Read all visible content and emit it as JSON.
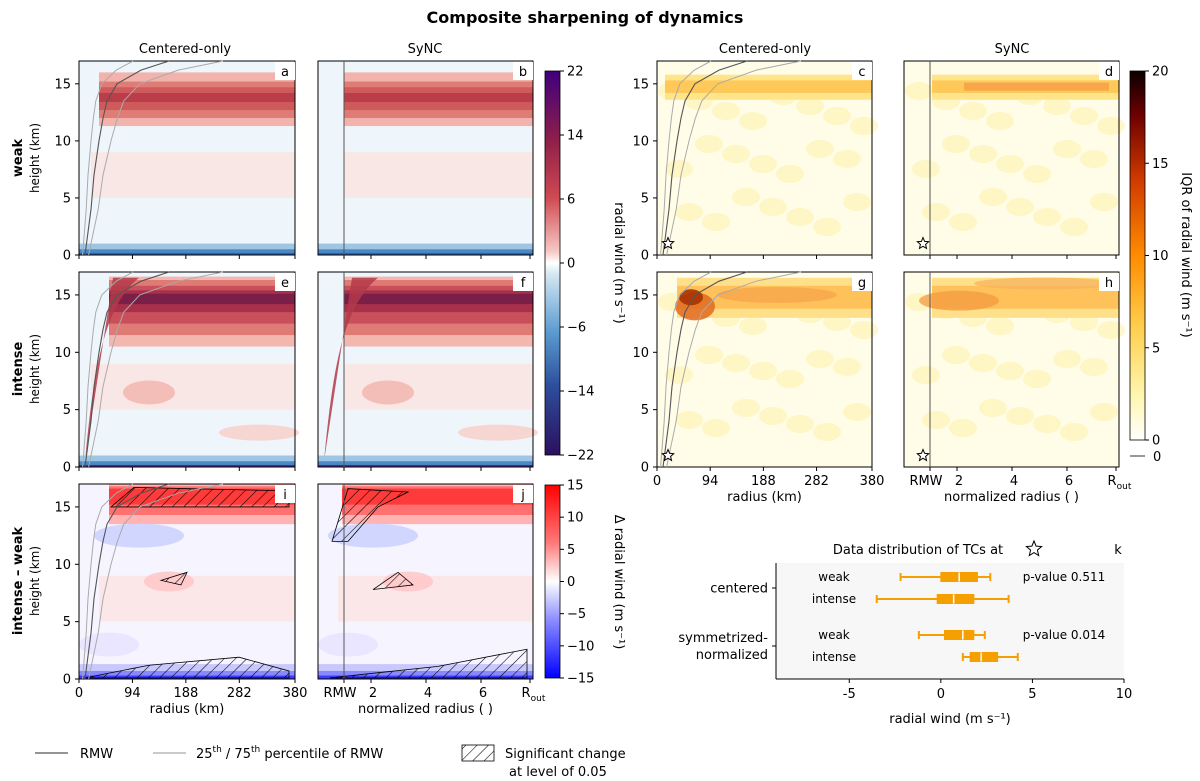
{
  "title": "Composite sharpening of dynamics",
  "col_titles": [
    "Centered-only",
    "SyNC",
    "Centered-only",
    "SyNC"
  ],
  "row_labels": [
    {
      "bold": "weak",
      "sub": "height (km)"
    },
    {
      "bold": "intense",
      "sub": "height (km)"
    },
    {
      "bold": "intense – weak",
      "sub": "height (km)"
    }
  ],
  "colorbars": {
    "radial": {
      "label": "radial wind (m s⁻¹)",
      "ticks": [
        "22",
        "14",
        "6",
        "0",
        "−6",
        "−14",
        "−22"
      ]
    },
    "delta": {
      "label": "Δ radial wind (m s⁻¹)",
      "ticks": [
        "15",
        "10",
        "5",
        "0",
        "−5",
        "−10",
        "−15"
      ]
    },
    "iqr": {
      "label": "IQR of radial wind (m s⁻¹)",
      "ticks": [
        "20",
        "15",
        "10",
        "5",
        "0"
      ],
      "line_tick": "0"
    }
  },
  "axes": {
    "height_ticks": [
      "0",
      "5",
      "10",
      "15"
    ],
    "radius_ticks": [
      "0",
      "94",
      "188",
      "282",
      "380"
    ],
    "radius_label": "radius (km)",
    "norm_ticks": [
      "RMW",
      "2",
      "4",
      "6",
      "R"
    ],
    "norm_sub": "out",
    "norm_label": "normalized radius ( )"
  },
  "panel_letters": [
    "a",
    "b",
    "c",
    "d",
    "e",
    "f",
    "g",
    "h",
    "i",
    "j",
    "k"
  ],
  "legend": {
    "rmw": "RMW",
    "pct_main": "25",
    "pct_sup1": "th",
    "pct_mid": " / 75",
    "pct_sup2": "th",
    "pct_tail": " percentile of RMW",
    "sig_line1": "Significant change",
    "sig_line2": "at level of 0.05"
  },
  "colors": {
    "red_dark": "#b2182b",
    "blue_dark": "#2166ac",
    "iqr_dark": "#bd3a00",
    "box": "#f5a000",
    "purple": "#3f007d"
  },
  "chart_data": {
    "type": "box",
    "title": "Data distribution of TCs at ☆",
    "xlabel": "radial wind (m s⁻¹)",
    "xlim": [
      -9,
      10
    ],
    "xticks": [
      "-5",
      "0",
      "5",
      "10"
    ],
    "groups": [
      {
        "name": "centered",
        "pvalue": "p-value 0.511",
        "boxes": [
          {
            "name": "weak",
            "whislo": -2.2,
            "q1": 0.0,
            "med": 1.0,
            "q3": 2.0,
            "whishi": 2.7
          },
          {
            "name": "intense",
            "whislo": -3.5,
            "q1": -0.2,
            "med": 0.7,
            "q3": 1.8,
            "whishi": 3.7
          }
        ]
      },
      {
        "name": "symmetrized-normalized",
        "pvalue": "p-value 0.014",
        "boxes": [
          {
            "name": "weak",
            "whislo": -1.2,
            "q1": 0.2,
            "med": 1.2,
            "q3": 1.8,
            "whishi": 2.4
          },
          {
            "name": "intense",
            "whislo": 1.2,
            "q1": 1.6,
            "med": 2.2,
            "q3": 3.1,
            "whishi": 4.2
          }
        ]
      }
    ],
    "group_labels": [
      [
        "centered"
      ],
      [
        "symmetrized-",
        "normalized"
      ]
    ]
  }
}
